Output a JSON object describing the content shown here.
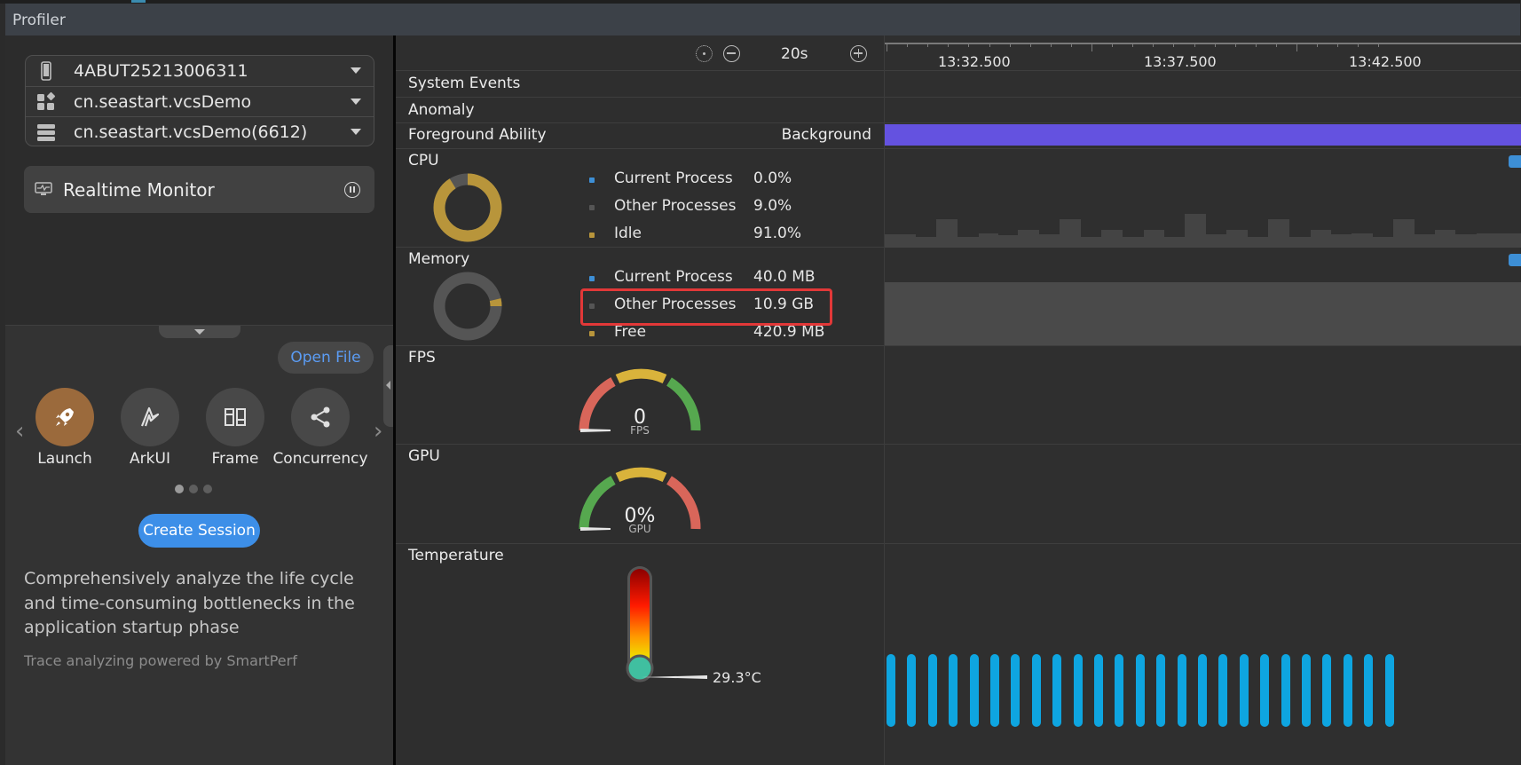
{
  "window": {
    "title": "Profiler"
  },
  "device": {
    "serial": "4ABUT25213006311",
    "app": "cn.seastart.vcsDemo",
    "process": "cn.seastart.vcsDemo(6612)"
  },
  "monitor": {
    "label": "Realtime Monitor"
  },
  "panel": {
    "open_file": "Open File",
    "tools": [
      {
        "label": "Launch",
        "icon": "rocket-icon",
        "active": true
      },
      {
        "label": "ArkUI",
        "icon": "arkui-icon",
        "active": false
      },
      {
        "label": "Frame",
        "icon": "frame-icon",
        "active": false
      },
      {
        "label": "Concurrency",
        "icon": "share-nodes-icon",
        "active": false
      }
    ],
    "create_session": "Create Session",
    "description": "Comprehensively analyze the life cycle and time-consuming bottlenecks in the application startup phase",
    "powered_by": "Trace analyzing powered by SmartPerf"
  },
  "toolbar": {
    "zoom": "20s"
  },
  "timeline": {
    "ticks": [
      "13:32.500",
      "13:37.500",
      "13:42.500"
    ]
  },
  "rows": {
    "system_events": "System Events",
    "anomaly": "Anomaly",
    "foreground": {
      "label": "Foreground Ability",
      "value": "Background"
    },
    "cpu": {
      "label": "CPU",
      "items": [
        {
          "name": "Current Process",
          "value": "0.0%",
          "color": "#3d8fd6"
        },
        {
          "name": "Other Processes",
          "value": "9.0%",
          "color": "#555555"
        },
        {
          "name": "Idle",
          "value": "91.0%",
          "color": "#b8953b"
        }
      ],
      "fractions": {
        "current": 0.0,
        "other": 0.09,
        "idle": 0.91
      }
    },
    "memory": {
      "label": "Memory",
      "items": [
        {
          "name": "Current Process",
          "value": "40.0 MB",
          "color": "#3d8fd6"
        },
        {
          "name": "Other Processes",
          "value": "10.9 GB",
          "color": "#555555"
        },
        {
          "name": "Free",
          "value": "420.9 MB",
          "color": "#b8953b"
        }
      ],
      "fractions": {
        "current": 0.003,
        "other": 0.96,
        "free": 0.037
      }
    },
    "fps": {
      "label": "FPS",
      "value": "0",
      "unit": "FPS"
    },
    "gpu": {
      "label": "GPU",
      "value": "0%",
      "unit": "GPU"
    },
    "temperature": {
      "label": "Temperature",
      "value": "29.3°C"
    }
  },
  "colors": {
    "foreground_bar": "#6452e0",
    "temperature_bar": "#0ea5e0",
    "highlight": "#e23838",
    "accent": "#3d8fe8"
  }
}
